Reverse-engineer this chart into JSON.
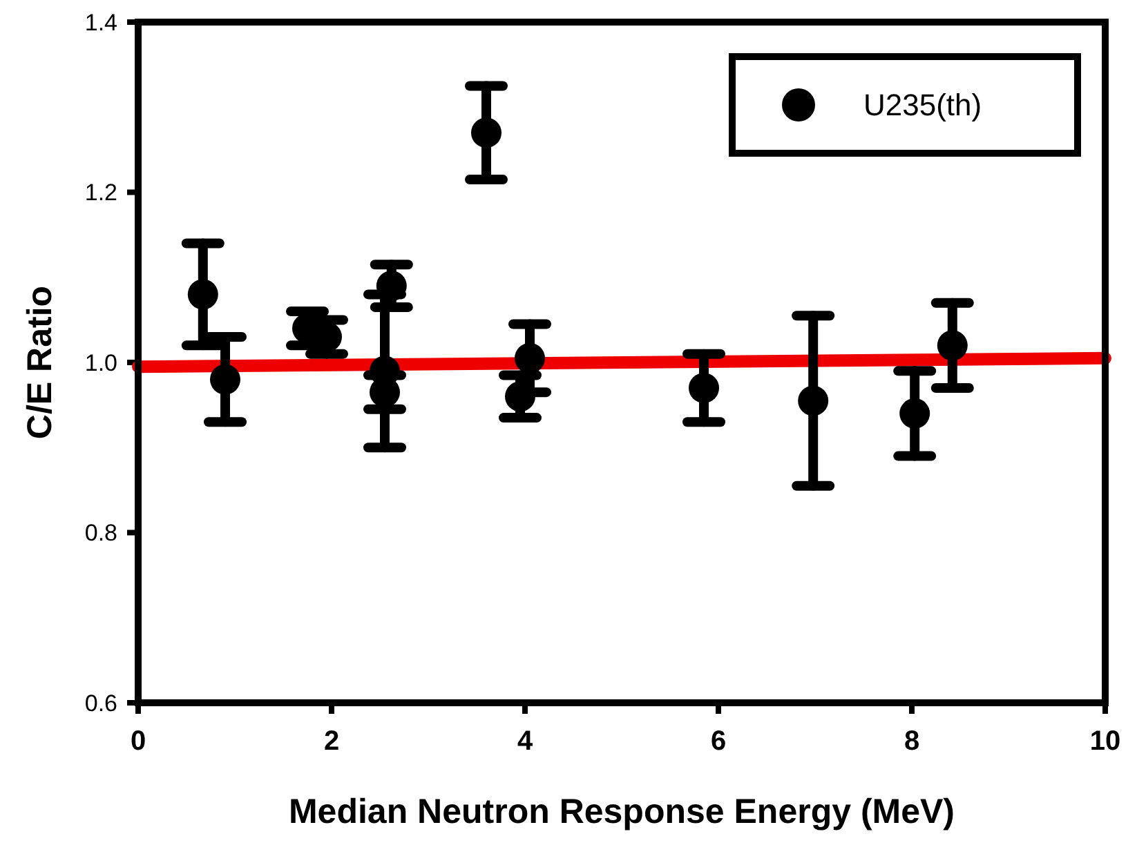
{
  "chart_data": {
    "type": "scatter",
    "xlabel": "Median Neutron Response Energy (MeV)",
    "ylabel": "C/E Ratio",
    "xlim": [
      0,
      10
    ],
    "xticks": [
      0,
      2,
      4,
      6,
      8,
      10
    ],
    "ylim": [
      0.6,
      1.4
    ],
    "yticks": [
      0.6,
      0.8,
      {
        "value": 1,
        "label": "1.0"
      },
      1.2,
      1.4
    ],
    "grid": false,
    "legend": "top right",
    "marker": "circle",
    "series": [
      {
        "name": "U235(th)",
        "color": "#000000",
        "x": [
          0.67,
          0.9,
          1.75,
          1.95,
          2.55,
          2.55,
          2.62,
          3.6,
          3.95,
          4.05,
          5.85,
          6.98,
          8.03,
          8.42
        ],
        "values": [
          1.08,
          0.98,
          1.04,
          1.03,
          0.99,
          0.965,
          1.09,
          1.27,
          0.96,
          1.005,
          0.97,
          0.955,
          0.94,
          1.02
        ],
        "errors": [
          0.06,
          0.05,
          0.02,
          0.02,
          0.09,
          0.02,
          0.025,
          0.055,
          0.025,
          0.04,
          0.04,
          0.1,
          0.05,
          0.05
        ]
      },
      {
        "type": "line",
        "color": "#ee0000",
        "x": [
          0,
          10
        ],
        "values": [
          0.995,
          1.005
        ],
        "line_style": "solid",
        "marker": "none"
      }
    ]
  }
}
